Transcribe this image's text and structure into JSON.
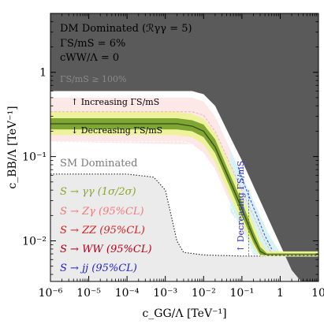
{
  "chart_data": {
    "type": "area",
    "xscale": "log",
    "yscale": "log",
    "xlim": [
      1e-06,
      10
    ],
    "ylim": [
      0.0033,
      5
    ],
    "xlabel": "c_GG/Λ  [TeV⁻¹]",
    "ylabel": "c_BB/Λ  [TeV⁻¹]",
    "xticks": [
      {
        "value": 1e-06,
        "label": "10⁻⁶"
      },
      {
        "value": 1e-05,
        "label": "10⁻⁵"
      },
      {
        "value": 0.0001,
        "label": "10⁻⁴"
      },
      {
        "value": 0.001,
        "label": "10⁻³"
      },
      {
        "value": 0.01,
        "label": "10⁻²"
      },
      {
        "value": 0.1,
        "label": "10⁻¹"
      },
      {
        "value": 1,
        "label": "1"
      },
      {
        "value": 10,
        "label": "10"
      }
    ],
    "yticks": [
      {
        "value": 0.01,
        "label": "10⁻²"
      },
      {
        "value": 0.1,
        "label": "10⁻¹"
      },
      {
        "value": 1,
        "label": "1"
      }
    ],
    "info_lines": [
      "DM Dominated (ℛγγ = 5)",
      "ΓS/mS = 6%",
      "cWW/Λ = 0"
    ],
    "region_labels": {
      "width_limit": "ΓS/mS ≥ 100%",
      "increasing": "↑ Increasing ΓS/mS",
      "decreasing": "↓ Decreasing ΓS/mS",
      "sm_dominated": "SM Dominated",
      "decreasing_vertical": "↑ Decreasing ΓS/mS"
    },
    "legend": [
      {
        "text": "S → γγ (1σ/2σ)",
        "color": "#8aa62a"
      },
      {
        "text": "S → Zγ (95%CL)",
        "color": "#f07a7a"
      },
      {
        "text": "S → ZZ (95%CL)",
        "color": "#d4201f"
      },
      {
        "text": "S → WW (95%CL)",
        "color": "#b0001a"
      },
      {
        "text": "S → jj (95%CL)",
        "color": "#1f1fcf"
      }
    ],
    "colors": {
      "dark_region": "#5a5a5a",
      "sm_region": "#ebebeb",
      "zgamma_band": "#fde8e8",
      "jj_band": "#d6f2f4",
      "band_2sigma": "#eef29a",
      "band_1sigma": "#7ea632",
      "center_line": "#3f4a18"
    },
    "series": [
      {
        "name": "S → γγ (1σ/2σ)",
        "x": [
          1e-06,
          0.002,
          0.005,
          0.01,
          0.02,
          0.05,
          0.1,
          0.2,
          0.3,
          0.45,
          0.6,
          10
        ],
        "center": [
          0.245,
          0.245,
          0.23,
          0.2,
          0.13,
          0.05,
          0.024,
          0.011,
          0.0075,
          0.0068,
          0.0068,
          0.0068
        ],
        "one_sigma": [
          [
            0.21,
            0.285
          ],
          [
            0.21,
            0.285
          ],
          [
            0.2,
            0.27
          ],
          [
            0.17,
            0.24
          ],
          [
            0.11,
            0.16
          ],
          [
            0.042,
            0.06
          ],
          [
            0.02,
            0.029
          ],
          [
            0.0095,
            0.013
          ],
          [
            0.0068,
            0.0085
          ],
          [
            0.0066,
            0.0071
          ],
          [
            0.0066,
            0.0071
          ],
          [
            0.0066,
            0.0071
          ]
        ],
        "two_sigma": [
          [
            0.18,
            0.34
          ],
          [
            0.18,
            0.34
          ],
          [
            0.17,
            0.32
          ],
          [
            0.14,
            0.28
          ],
          [
            0.085,
            0.19
          ],
          [
            0.033,
            0.075
          ],
          [
            0.016,
            0.036
          ],
          [
            0.0085,
            0.016
          ],
          [
            0.0066,
            0.01
          ],
          [
            0.0065,
            0.0075
          ],
          [
            0.0065,
            0.0075
          ],
          [
            0.0065,
            0.0075
          ]
        ]
      }
    ],
    "boundaries": {
      "zgamma_upper": {
        "x": [
          1e-06,
          0.005,
          0.01,
          0.02,
          0.05,
          0.1,
          0.2,
          0.4,
          0.7,
          1.0,
          10
        ],
        "y": [
          0.5,
          0.5,
          0.45,
          0.3,
          0.12,
          0.06,
          0.03,
          0.014,
          0.0082,
          0.0072,
          0.0072
        ]
      },
      "zgamma_lower": {
        "x": [
          1e-06,
          0.002,
          0.005,
          0.01,
          0.02,
          0.05,
          0.1,
          0.2,
          0.3,
          10
        ],
        "y": [
          0.15,
          0.15,
          0.14,
          0.11,
          0.07,
          0.027,
          0.013,
          0.0075,
          0.0066,
          0.0066
        ]
      },
      "jj_upper": {
        "x": [
          0.05,
          0.1,
          0.2,
          0.5,
          1.0,
          2.0,
          10
        ],
        "y": [
          0.12,
          0.06,
          0.03,
          0.012,
          0.0072,
          0.0072,
          0.0072
        ]
      },
      "jj_left": {
        "x": [
          0.15,
          0.15
        ],
        "y": [
          0.0068,
          0.04
        ]
      },
      "dark_lower": {
        "x": [
          1e-06,
          0.005,
          0.01,
          0.02,
          0.05,
          0.1,
          0.2,
          0.5,
          1.0,
          2.0,
          3.5,
          10
        ],
        "y": [
          0.6,
          0.6,
          0.55,
          0.4,
          0.17,
          0.09,
          0.045,
          0.018,
          0.009,
          0.0045,
          0.0033,
          0.0033
        ]
      },
      "sm_boundary": {
        "x": [
          1e-06,
          0.0001,
          0.0005,
          0.001,
          0.0015,
          0.002,
          0.003,
          0.01,
          0.1,
          10
        ],
        "y": [
          0.062,
          0.062,
          0.057,
          0.04,
          0.018,
          0.01,
          0.0073,
          0.0068,
          0.0066,
          0.0066
        ]
      },
      "dashed_lower_white": {
        "x": [
          1e-06,
          0.003,
          0.005,
          0.01,
          0.02,
          0.05,
          0.1,
          0.2,
          0.3,
          10
        ],
        "y": [
          0.15,
          0.15,
          0.14,
          0.11,
          0.07,
          0.027,
          0.013,
          0.0075,
          0.0067,
          0.0067
        ]
      },
      "dashed_upper_pink": {
        "x": [
          1e-06,
          0.005,
          0.01,
          0.02,
          0.05,
          0.1,
          0.2,
          0.4,
          0.6
        ],
        "y": [
          0.34,
          0.34,
          0.31,
          0.2,
          0.08,
          0.04,
          0.02,
          0.0098,
          0.0072
        ]
      },
      "blue_dashed": {
        "x": [
          0.08,
          0.1,
          0.2,
          0.4,
          0.6
        ],
        "y": [
          0.075,
          0.055,
          0.025,
          0.0115,
          0.008
        ]
      }
    }
  }
}
